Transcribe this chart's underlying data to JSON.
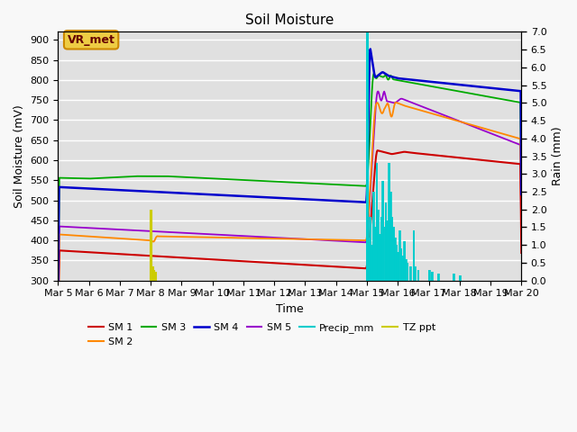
{
  "title": "Soil Moisture",
  "ylabel_left": "Soil Moisture (mV)",
  "ylabel_right": "Rain (mm)",
  "xlabel": "Time",
  "ylim_left": [
    300,
    920
  ],
  "ylim_right": [
    0.0,
    7.0
  ],
  "yticks_left": [
    300,
    350,
    400,
    450,
    500,
    550,
    600,
    650,
    700,
    750,
    800,
    850,
    900
  ],
  "yticks_right": [
    0.0,
    0.5,
    1.0,
    1.5,
    2.0,
    2.5,
    3.0,
    3.5,
    4.0,
    4.5,
    5.0,
    5.5,
    6.0,
    6.5,
    7.0
  ],
  "xtick_labels": [
    "Mar 5",
    "Mar 6",
    "Mar 7",
    "Mar 8",
    "Mar 9",
    "Mar 10",
    "Mar 11",
    "Mar 12",
    "Mar 13",
    "Mar 14",
    "Mar 15",
    "Mar 16",
    "Mar 17",
    "Mar 18",
    "Mar 19",
    "Mar 20"
  ],
  "colors": {
    "SM1": "#cc0000",
    "SM2": "#ff8800",
    "SM3": "#00aa00",
    "SM4": "#0000cc",
    "SM5": "#9900cc",
    "Precip": "#00cccc",
    "TZ": "#cccc00"
  },
  "vr_met_bg": "#eecc44",
  "vr_met_edge": "#cc8800",
  "vr_met_text": "#660000",
  "bg_color": "#e0e0e0",
  "grid_color": "#ffffff",
  "fig_bg": "#f8f8f8"
}
